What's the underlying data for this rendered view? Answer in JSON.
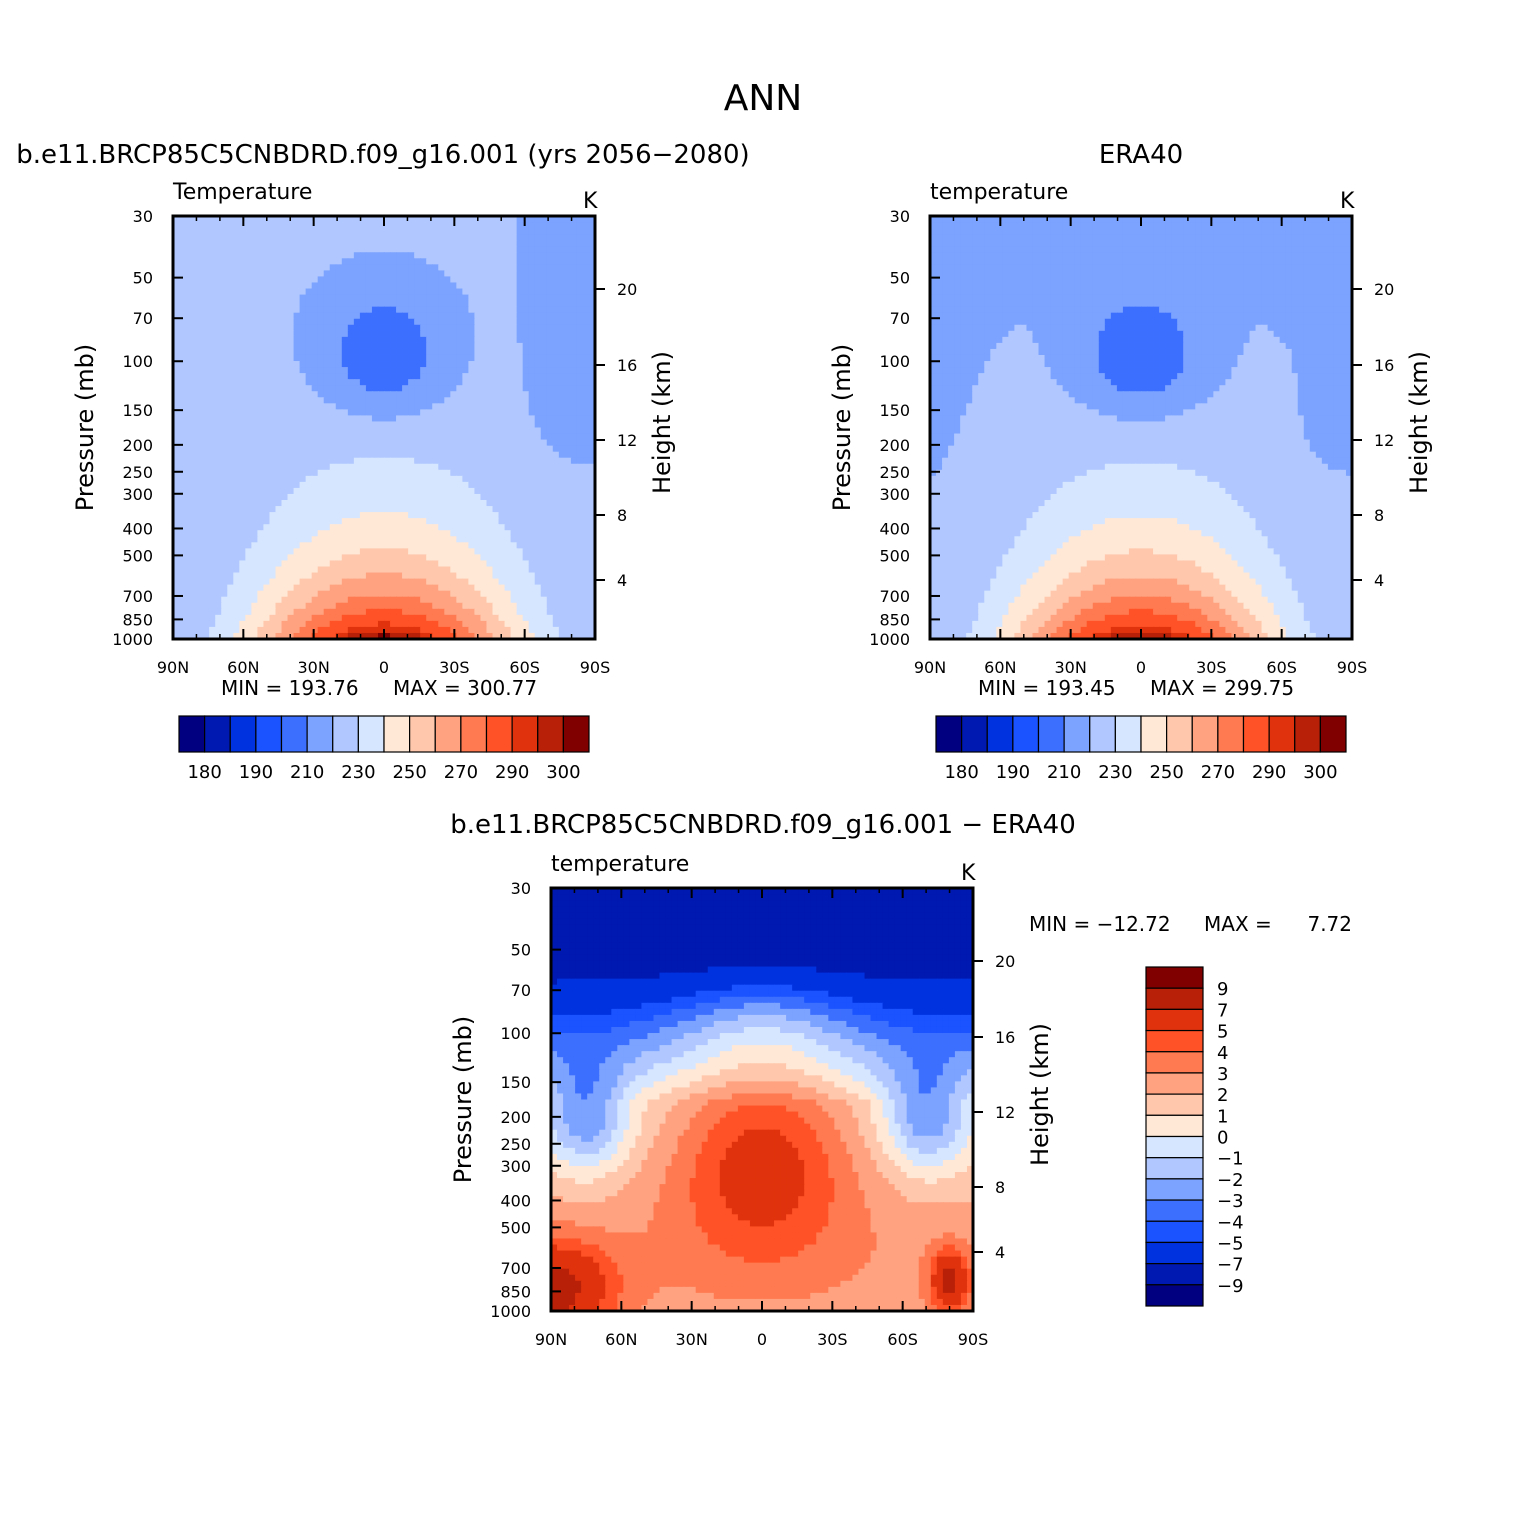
{
  "figure": {
    "title": "ANN"
  },
  "chart_data": [
    {
      "type": "heatmap",
      "panel_title": "b.e11.BRCP85C5CNBDRD.f09_g16.001 (yrs 2056−2080)",
      "variable_label": "Temperature",
      "units": "K",
      "ylabel": "Pressure (mb)",
      "y2label": "Height (km)",
      "x_ticks": [
        "90N",
        "60N",
        "30N",
        "0",
        "30S",
        "60S",
        "90S"
      ],
      "y_ticks": [
        "30",
        "50",
        "70",
        "100",
        "150",
        "200",
        "250",
        "300",
        "400",
        "500",
        "700",
        "850",
        "1000"
      ],
      "y2_ticks": [
        "20",
        "16",
        "12",
        "8",
        "4"
      ],
      "min_text": "MIN = 193.76",
      "max_text": "MAX = 300.77",
      "min": 193.76,
      "max": 300.77,
      "levels": [
        180,
        185,
        190,
        200,
        210,
        220,
        230,
        240,
        250,
        260,
        270,
        280,
        290,
        295,
        300
      ],
      "colorbar_labels": [
        "180",
        "190",
        "210",
        "230",
        "250",
        "270",
        "290",
        "300"
      ],
      "colors": [
        "#000080",
        "#0019b0",
        "#0032e0",
        "#1a53ff",
        "#3d6fff",
        "#7ca3ff",
        "#b0c8ff",
        "#d6e6ff",
        "#ffe8d6",
        "#ffc8ad",
        "#ffa280",
        "#ff7a50",
        "#ff5226",
        "#e0330d",
        "#b82008",
        "#800000"
      ]
    },
    {
      "type": "heatmap",
      "panel_title": "ERA40",
      "variable_label": "temperature",
      "units": "K",
      "ylabel": "Pressure (mb)",
      "y2label": "Height (km)",
      "x_ticks": [
        "90N",
        "60N",
        "30N",
        "0",
        "30S",
        "60S",
        "90S"
      ],
      "y_ticks": [
        "30",
        "50",
        "70",
        "100",
        "150",
        "200",
        "250",
        "300",
        "400",
        "500",
        "700",
        "850",
        "1000"
      ],
      "y2_ticks": [
        "20",
        "16",
        "12",
        "8",
        "4"
      ],
      "min_text": "MIN = 193.45",
      "max_text": "MAX = 299.75",
      "min": 193.45,
      "max": 299.75,
      "levels": [
        180,
        185,
        190,
        200,
        210,
        220,
        230,
        240,
        250,
        260,
        270,
        280,
        290,
        295,
        300
      ],
      "colorbar_labels": [
        "180",
        "190",
        "210",
        "230",
        "250",
        "270",
        "290",
        "300"
      ],
      "colors": [
        "#000080",
        "#0019b0",
        "#0032e0",
        "#1a53ff",
        "#3d6fff",
        "#7ca3ff",
        "#b0c8ff",
        "#d6e6ff",
        "#ffe8d6",
        "#ffc8ad",
        "#ffa280",
        "#ff7a50",
        "#ff5226",
        "#e0330d",
        "#b82008",
        "#800000"
      ]
    },
    {
      "type": "heatmap",
      "panel_title": "b.e11.BRCP85C5CNBDRD.f09_g16.001 − ERA40",
      "variable_label": "temperature",
      "units": "K",
      "ylabel": "Pressure (mb)",
      "y2label": "Height (km)",
      "x_ticks": [
        "90N",
        "60N",
        "30N",
        "0",
        "30S",
        "60S",
        "90S"
      ],
      "y_ticks": [
        "30",
        "50",
        "70",
        "100",
        "150",
        "200",
        "250",
        "300",
        "400",
        "500",
        "700",
        "850",
        "1000"
      ],
      "y2_ticks": [
        "20",
        "16",
        "12",
        "8",
        "4"
      ],
      "min_text": "MIN = −12.72",
      "max_text": "MAX =",
      "max_value_text": "7.72",
      "min": -12.72,
      "max": 7.72,
      "levels": [
        -9,
        -7,
        -5,
        -4,
        -3,
        -2,
        -1,
        0,
        1,
        2,
        3,
        4,
        5,
        7,
        9
      ],
      "colorbar_labels": [
        "9",
        "7",
        "5",
        "4",
        "3",
        "2",
        "1",
        "0",
        "−1",
        "−2",
        "−3",
        "−4",
        "−5",
        "−7",
        "−9"
      ],
      "colors": [
        "#000080",
        "#0019b0",
        "#0032e0",
        "#1a53ff",
        "#3d6fff",
        "#7ca3ff",
        "#b0c8ff",
        "#d6e6ff",
        "#ffe8d6",
        "#ffc8ad",
        "#ffa280",
        "#ff7a50",
        "#ff5226",
        "#e0330d",
        "#b82008",
        "#800000"
      ]
    }
  ]
}
